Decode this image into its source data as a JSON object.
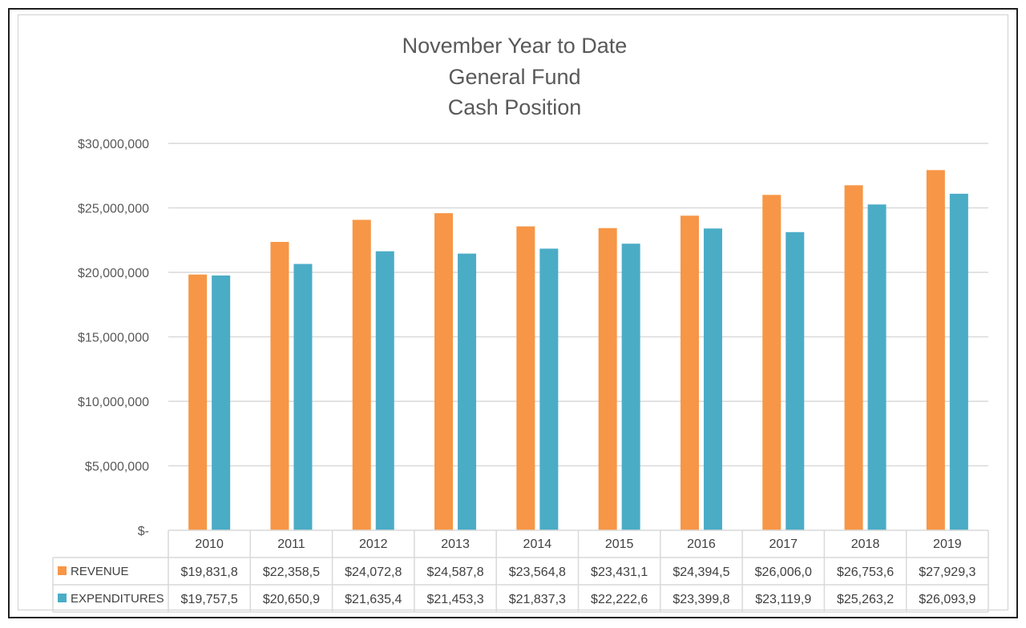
{
  "chart_data": {
    "type": "bar",
    "title_lines": [
      "November Year to Date",
      "General Fund",
      "Cash Position"
    ],
    "categories": [
      "2010",
      "2011",
      "2012",
      "2013",
      "2014",
      "2015",
      "2016",
      "2017",
      "2018",
      "2019"
    ],
    "series": [
      {
        "name": "REVENUE",
        "color": "#F79646",
        "values": [
          19831800,
          22358500,
          24072800,
          24587800,
          23564800,
          23431100,
          24394500,
          26006000,
          26753600,
          27929300
        ],
        "table_labels": [
          "$19,831,8",
          "$22,358,5",
          "$24,072,8",
          "$24,587,8",
          "$23,564,8",
          "$23,431,1",
          "$24,394,5",
          "$26,006,0",
          "$26,753,6",
          "$27,929,3"
        ]
      },
      {
        "name": "EXPENDITURES",
        "color": "#4BACC6",
        "values": [
          19757500,
          20650900,
          21635400,
          21453300,
          21837300,
          22222600,
          23399800,
          23119900,
          25263200,
          26093900
        ],
        "table_labels": [
          "$19,757,5",
          "$20,650,9",
          "$21,635,4",
          "$21,453,3",
          "$21,837,3",
          "$22,222,6",
          "$23,399,8",
          "$23,119,9",
          "$25,263,2",
          "$26,093,9"
        ]
      }
    ],
    "xlabel": "",
    "ylabel": "",
    "ylim": [
      0,
      30000000
    ],
    "yticks": [
      0,
      5000000,
      10000000,
      15000000,
      20000000,
      25000000,
      30000000
    ],
    "ytick_labels": [
      "$-",
      "$5,000,000",
      "$10,000,000",
      "$15,000,000",
      "$20,000,000",
      "$25,000,000",
      "$30,000,000"
    ],
    "grid": true,
    "legend": "data-table"
  }
}
